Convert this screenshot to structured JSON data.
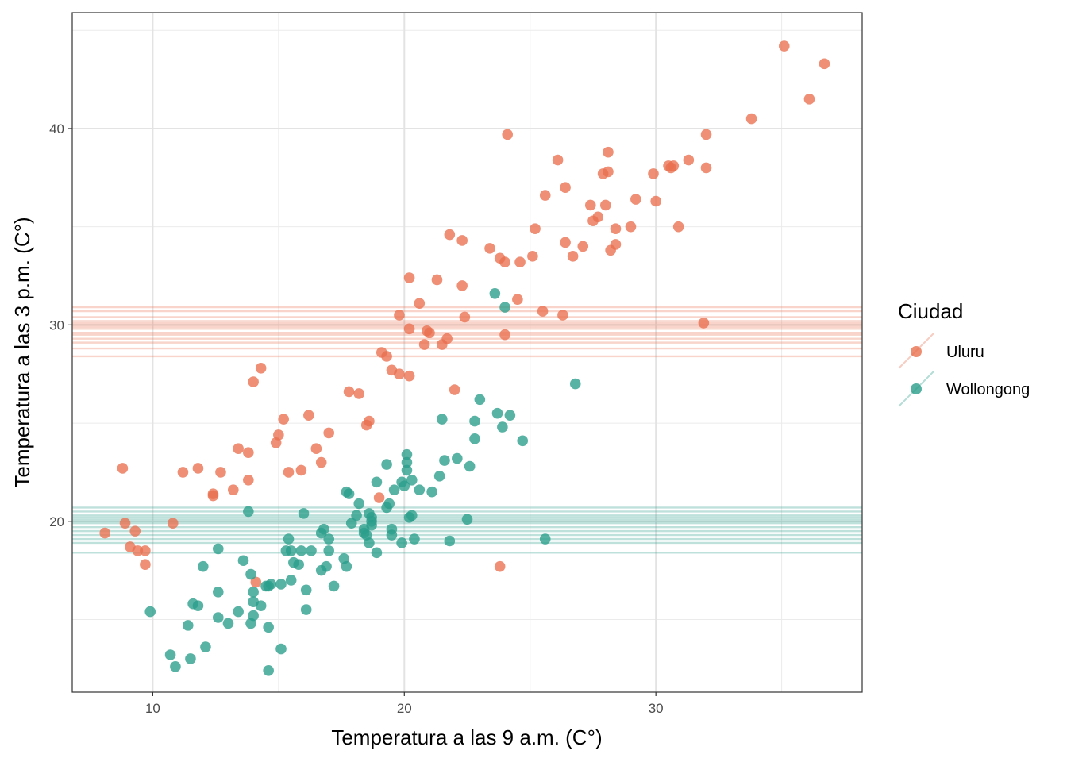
{
  "chart_data": {
    "type": "scatter",
    "title": "",
    "xlabel": "Temperatura a las 9 a.m. (C°)",
    "ylabel": "Temperatura a las 3 p.m. (C°)",
    "xlim": [
      6.8,
      38.2
    ],
    "ylim": [
      11.3,
      45.9
    ],
    "x_ticks": [
      10,
      20,
      30
    ],
    "y_ticks": [
      20,
      30,
      40
    ],
    "grid": true,
    "legend": {
      "title": "Ciudad",
      "position": "right"
    },
    "series": [
      {
        "name": "Uluru",
        "color": "#E9704F",
        "hlines": [
          28.4,
          28.8,
          29.1,
          29.3,
          29.5,
          29.6,
          29.8,
          29.9,
          30.0,
          30.1,
          30.2,
          30.4,
          30.7,
          30.9
        ],
        "points": [
          [
            8.1,
            19.4
          ],
          [
            8.8,
            22.7
          ],
          [
            8.9,
            19.9
          ],
          [
            9.1,
            18.7
          ],
          [
            9.3,
            19.5
          ],
          [
            9.4,
            18.5
          ],
          [
            9.7,
            18.5
          ],
          [
            9.7,
            17.8
          ],
          [
            10.8,
            19.9
          ],
          [
            11.2,
            22.5
          ],
          [
            11.8,
            22.7
          ],
          [
            12.4,
            21.3
          ],
          [
            12.4,
            21.4
          ],
          [
            12.7,
            22.5
          ],
          [
            13.2,
            21.6
          ],
          [
            13.4,
            23.7
          ],
          [
            13.8,
            23.5
          ],
          [
            13.8,
            22.1
          ],
          [
            14.0,
            27.1
          ],
          [
            14.1,
            16.9
          ],
          [
            14.3,
            27.8
          ],
          [
            14.9,
            24.0
          ],
          [
            15.0,
            24.4
          ],
          [
            15.2,
            25.2
          ],
          [
            15.4,
            22.5
          ],
          [
            15.9,
            22.6
          ],
          [
            16.2,
            25.4
          ],
          [
            16.5,
            23.7
          ],
          [
            16.7,
            23.0
          ],
          [
            17.0,
            24.5
          ],
          [
            17.8,
            26.6
          ],
          [
            18.2,
            26.5
          ],
          [
            18.5,
            24.9
          ],
          [
            18.6,
            25.1
          ],
          [
            19.0,
            21.2
          ],
          [
            19.1,
            28.6
          ],
          [
            19.3,
            28.4
          ],
          [
            19.5,
            27.7
          ],
          [
            19.8,
            27.5
          ],
          [
            19.8,
            30.5
          ],
          [
            20.2,
            27.4
          ],
          [
            20.2,
            32.4
          ],
          [
            20.2,
            29.8
          ],
          [
            20.6,
            31.1
          ],
          [
            20.8,
            29.0
          ],
          [
            20.9,
            29.7
          ],
          [
            21.0,
            29.6
          ],
          [
            21.3,
            32.3
          ],
          [
            21.5,
            29.0
          ],
          [
            21.7,
            29.3
          ],
          [
            21.8,
            34.6
          ],
          [
            22.0,
            26.7
          ],
          [
            22.3,
            32.0
          ],
          [
            22.3,
            34.3
          ],
          [
            22.4,
            30.4
          ],
          [
            23.4,
            33.9
          ],
          [
            23.8,
            33.4
          ],
          [
            23.8,
            17.7
          ],
          [
            24.0,
            33.2
          ],
          [
            24.0,
            29.5
          ],
          [
            24.1,
            39.7
          ],
          [
            24.5,
            31.3
          ],
          [
            24.6,
            33.2
          ],
          [
            25.1,
            33.5
          ],
          [
            25.2,
            34.9
          ],
          [
            25.5,
            30.7
          ],
          [
            25.6,
            36.6
          ],
          [
            26.1,
            38.4
          ],
          [
            26.3,
            30.5
          ],
          [
            26.4,
            34.2
          ],
          [
            26.4,
            37.0
          ],
          [
            26.7,
            33.5
          ],
          [
            27.1,
            34.0
          ],
          [
            27.4,
            36.1
          ],
          [
            27.5,
            35.3
          ],
          [
            27.7,
            35.5
          ],
          [
            27.9,
            37.7
          ],
          [
            28.0,
            36.1
          ],
          [
            28.1,
            37.8
          ],
          [
            28.1,
            38.8
          ],
          [
            28.2,
            33.8
          ],
          [
            28.4,
            34.9
          ],
          [
            28.4,
            34.1
          ],
          [
            29.0,
            35.0
          ],
          [
            29.2,
            36.4
          ],
          [
            29.9,
            37.7
          ],
          [
            30.0,
            36.3
          ],
          [
            30.5,
            38.1
          ],
          [
            30.6,
            38.0
          ],
          [
            30.7,
            38.1
          ],
          [
            30.9,
            35.0
          ],
          [
            31.3,
            38.4
          ],
          [
            31.9,
            30.1
          ],
          [
            32.0,
            39.7
          ],
          [
            32.0,
            38.0
          ],
          [
            33.8,
            40.5
          ],
          [
            35.1,
            44.2
          ],
          [
            36.1,
            41.5
          ],
          [
            36.7,
            43.3
          ]
        ]
      },
      {
        "name": "Wollongong",
        "color": "#2A9D8A",
        "hlines": [
          18.4,
          18.9,
          19.1,
          19.3,
          19.5,
          19.7,
          19.9,
          20.0,
          20.1,
          20.2,
          20.3,
          20.5,
          20.7
        ],
        "points": [
          [
            9.9,
            15.4
          ],
          [
            10.7,
            13.2
          ],
          [
            10.9,
            12.6
          ],
          [
            11.4,
            14.7
          ],
          [
            11.5,
            13.0
          ],
          [
            11.6,
            15.8
          ],
          [
            11.8,
            15.7
          ],
          [
            12.0,
            17.7
          ],
          [
            12.1,
            13.6
          ],
          [
            12.6,
            18.6
          ],
          [
            12.6,
            16.4
          ],
          [
            12.6,
            15.1
          ],
          [
            13.0,
            14.8
          ],
          [
            13.4,
            15.4
          ],
          [
            13.6,
            18.0
          ],
          [
            13.8,
            20.5
          ],
          [
            13.9,
            17.3
          ],
          [
            13.9,
            14.8
          ],
          [
            14.0,
            16.4
          ],
          [
            14.0,
            15.9
          ],
          [
            14.0,
            15.2
          ],
          [
            14.3,
            15.7
          ],
          [
            14.5,
            16.7
          ],
          [
            14.6,
            14.6
          ],
          [
            14.6,
            12.4
          ],
          [
            14.6,
            16.7
          ],
          [
            14.7,
            16.8
          ],
          [
            15.1,
            16.8
          ],
          [
            15.1,
            13.5
          ],
          [
            15.3,
            18.5
          ],
          [
            15.4,
            19.1
          ],
          [
            15.5,
            18.5
          ],
          [
            15.5,
            17.0
          ],
          [
            15.6,
            17.9
          ],
          [
            15.8,
            17.8
          ],
          [
            15.9,
            18.5
          ],
          [
            16.0,
            20.4
          ],
          [
            16.1,
            16.5
          ],
          [
            16.1,
            15.5
          ],
          [
            16.3,
            18.5
          ],
          [
            16.7,
            19.4
          ],
          [
            16.7,
            17.5
          ],
          [
            16.8,
            19.6
          ],
          [
            16.9,
            17.7
          ],
          [
            17.0,
            18.5
          ],
          [
            17.0,
            19.1
          ],
          [
            17.2,
            16.7
          ],
          [
            17.6,
            18.1
          ],
          [
            17.7,
            17.7
          ],
          [
            17.7,
            21.5
          ],
          [
            17.8,
            21.4
          ],
          [
            17.9,
            19.9
          ],
          [
            18.1,
            20.3
          ],
          [
            18.2,
            20.9
          ],
          [
            18.4,
            19.6
          ],
          [
            18.4,
            19.4
          ],
          [
            18.5,
            19.3
          ],
          [
            18.6,
            20.4
          ],
          [
            18.6,
            18.9
          ],
          [
            18.7,
            20.2
          ],
          [
            18.7,
            19.8
          ],
          [
            18.7,
            20.0
          ],
          [
            18.9,
            18.4
          ],
          [
            18.9,
            22.0
          ],
          [
            19.3,
            22.9
          ],
          [
            19.3,
            20.7
          ],
          [
            19.4,
            20.9
          ],
          [
            19.5,
            19.6
          ],
          [
            19.5,
            19.3
          ],
          [
            19.6,
            21.6
          ],
          [
            19.9,
            22.0
          ],
          [
            19.9,
            18.9
          ],
          [
            20.0,
            21.8
          ],
          [
            20.1,
            23.4
          ],
          [
            20.1,
            23.0
          ],
          [
            20.1,
            22.6
          ],
          [
            20.2,
            20.2
          ],
          [
            20.3,
            20.3
          ],
          [
            20.3,
            22.1
          ],
          [
            20.4,
            19.1
          ],
          [
            20.6,
            21.6
          ],
          [
            21.1,
            21.5
          ],
          [
            21.4,
            22.3
          ],
          [
            21.5,
            25.2
          ],
          [
            21.6,
            23.1
          ],
          [
            21.8,
            19.0
          ],
          [
            22.1,
            23.2
          ],
          [
            22.5,
            20.1
          ],
          [
            22.6,
            22.8
          ],
          [
            22.8,
            24.2
          ],
          [
            22.8,
            25.1
          ],
          [
            23.0,
            26.2
          ],
          [
            23.6,
            31.6
          ],
          [
            23.7,
            25.5
          ],
          [
            23.9,
            24.8
          ],
          [
            24.0,
            30.9
          ],
          [
            24.2,
            25.4
          ],
          [
            24.7,
            24.1
          ],
          [
            25.6,
            19.1
          ],
          [
            26.8,
            27.0
          ]
        ]
      }
    ]
  }
}
